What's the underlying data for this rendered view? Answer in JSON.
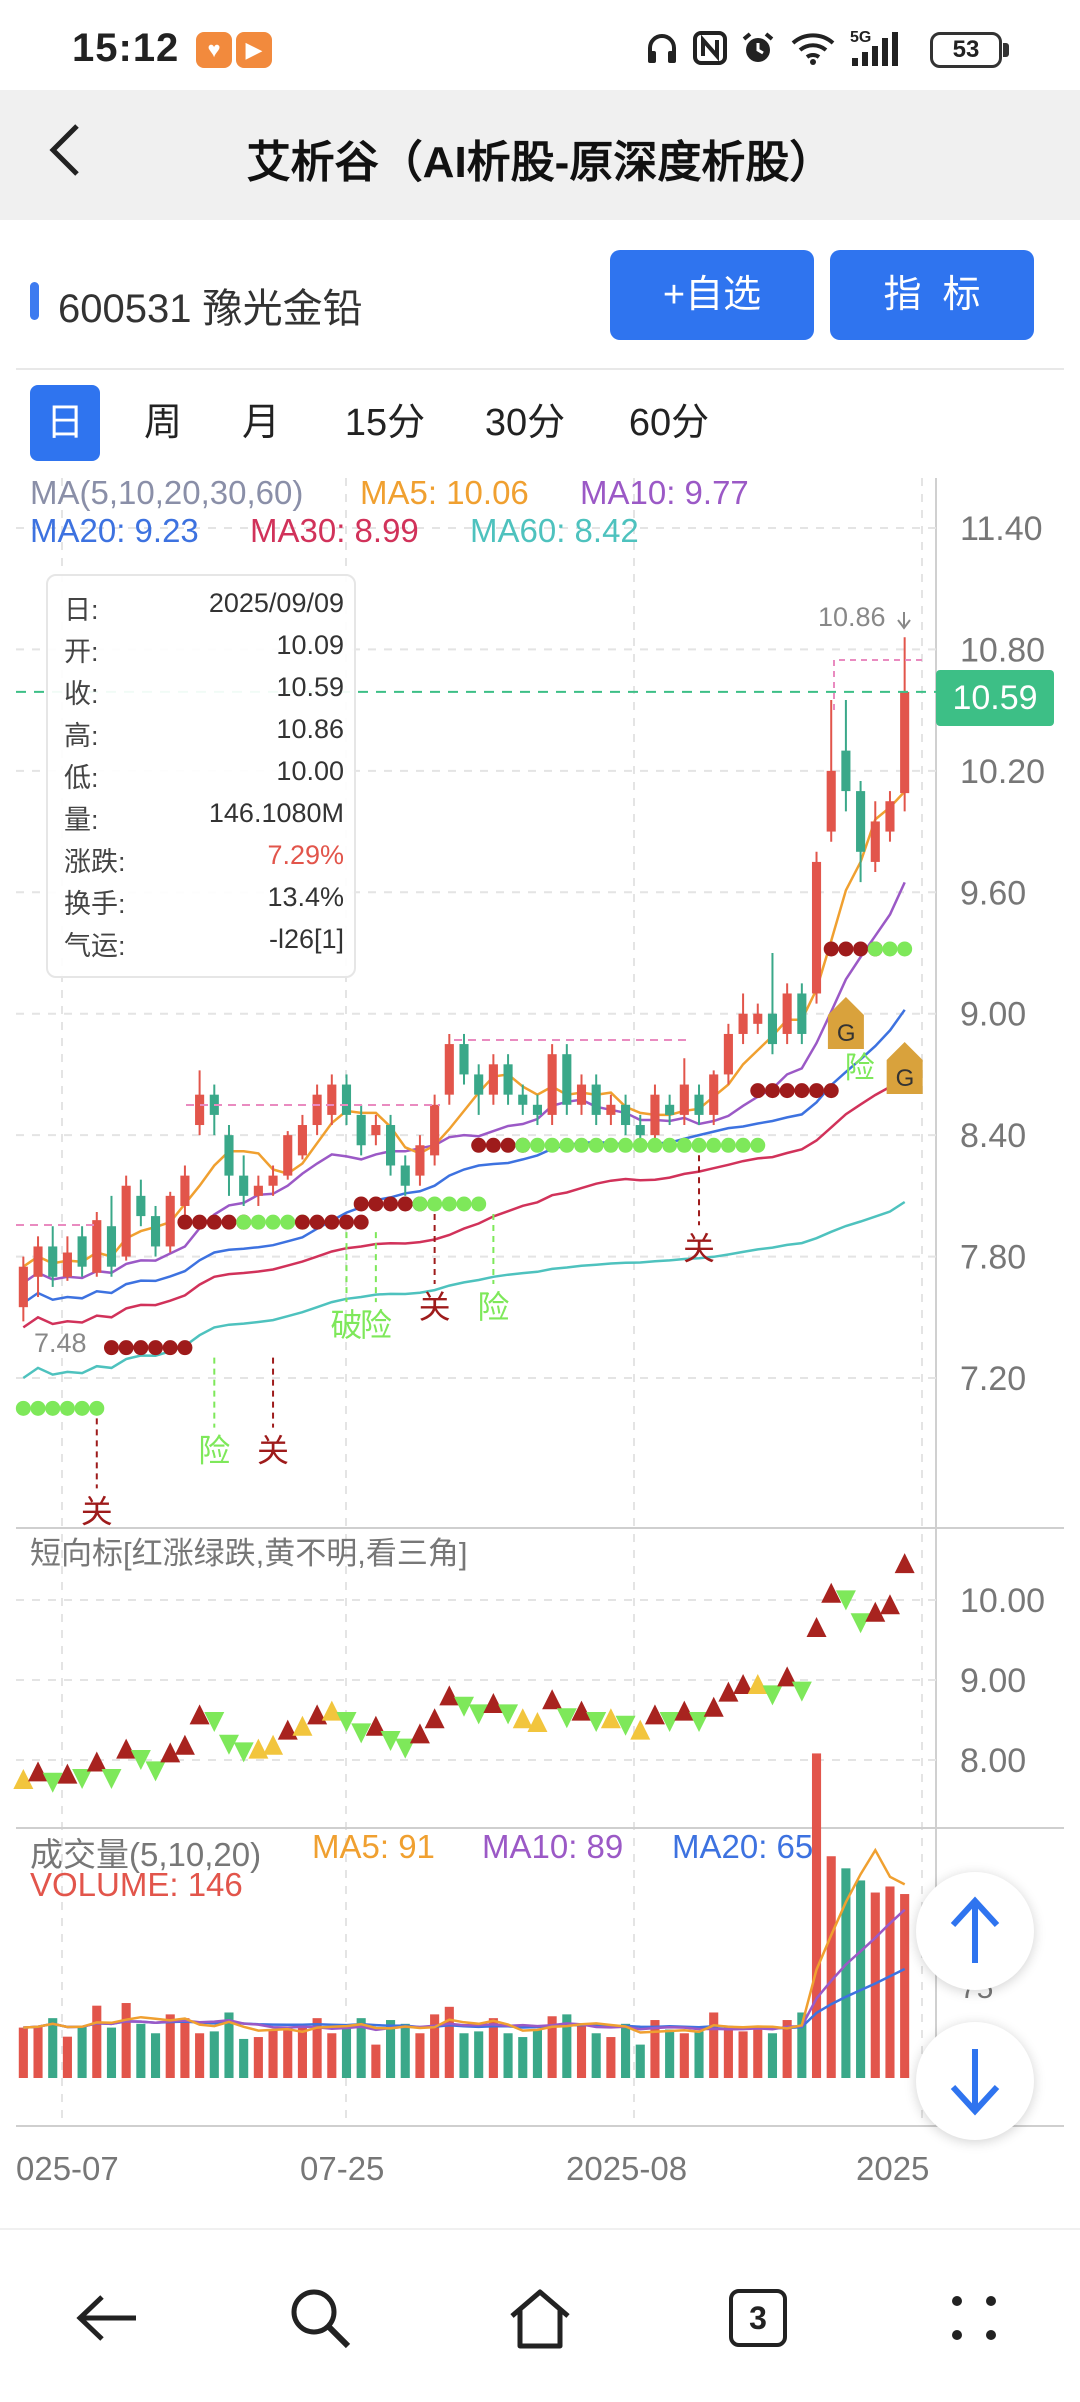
{
  "status_bar": {
    "time": "15:12",
    "battery": "53",
    "network": "5G",
    "icons": [
      "heart-app-icon",
      "play-app-icon",
      "headphones-icon",
      "nfc-icon",
      "alarm-icon",
      "wifi-icon",
      "signal-icon",
      "battery-icon"
    ]
  },
  "header": {
    "title": "艾析谷（AI析股-原深度析股）"
  },
  "stock": {
    "name": "600531 豫光金铅",
    "add_watchlist": "+自选",
    "indicators": "指  标"
  },
  "period_tabs": [
    "日",
    "周",
    "月",
    "15分",
    "30分",
    "60分"
  ],
  "ma_legend": {
    "title": "MA(5,10,20,30,60)",
    "ma5": "MA5: 10.06",
    "ma10": "MA10: 9.77",
    "ma20": "MA20: 9.23",
    "ma30": "MA30: 8.99",
    "ma60": "MA60: 8.42"
  },
  "info_box": {
    "rows": [
      {
        "k": "日:",
        "v": "2025/09/09"
      },
      {
        "k": "开:",
        "v": "10.09"
      },
      {
        "k": "收:",
        "v": "10.59"
      },
      {
        "k": "高:",
        "v": "10.86"
      },
      {
        "k": "低:",
        "v": "10.00"
      },
      {
        "k": "量:",
        "v": "146.1080M"
      },
      {
        "k": "涨跌:",
        "v": "7.29%"
      },
      {
        "k": "换手:",
        "v": "13.4%"
      },
      {
        "k": "气运:",
        "v": "-l26[1]"
      }
    ]
  },
  "price_tag": "10.59",
  "high_label": "10.86",
  "low_label": "7.48",
  "price_axis": [
    "11.40",
    "10.80",
    "10.20",
    "9.60",
    "9.00",
    "8.40",
    "7.80",
    "7.20"
  ],
  "short_indicator": {
    "title": "短向标[红涨绿跌,黄不明,看三角]",
    "axis": [
      "10.00",
      "9.00",
      "8.00"
    ]
  },
  "volume": {
    "title": "成交量(5,10,20)",
    "ma5": "MA5: 91",
    "ma10": "MA10: 89",
    "ma20": "MA20: 65",
    "volume_label": "VOLUME: 146",
    "axis_partial": "75"
  },
  "date_axis": [
    "025-07",
    "07-25",
    "2025-08",
    "2025"
  ],
  "signals": {
    "guan": "关",
    "xian": "险",
    "po": "破",
    "g": "G"
  },
  "colors": {
    "up": "#e2554b",
    "down": "#3aa889",
    "ma5": "#f0a030",
    "ma10": "#9b59c6",
    "ma20": "#3d72e0",
    "ma30": "#d1325a",
    "ma60": "#4ec2be",
    "accent": "#2f74ef"
  },
  "chart_data": {
    "type": "candlestick",
    "period": "daily",
    "ylim": [
      6.9,
      11.6
    ],
    "candles": [
      {
        "o": 7.55,
        "c": 7.75,
        "h": 7.8,
        "l": 7.48
      },
      {
        "o": 7.7,
        "c": 7.85,
        "h": 7.9,
        "l": 7.6
      },
      {
        "o": 7.85,
        "c": 7.7,
        "h": 7.95,
        "l": 7.65
      },
      {
        "o": 7.7,
        "c": 7.82,
        "h": 7.9,
        "l": 7.68
      },
      {
        "o": 7.9,
        "c": 7.75,
        "h": 7.95,
        "l": 7.7
      },
      {
        "o": 7.72,
        "c": 7.98,
        "h": 8.02,
        "l": 7.7
      },
      {
        "o": 7.95,
        "c": 7.75,
        "h": 8.1,
        "l": 7.7
      },
      {
        "o": 7.8,
        "c": 8.15,
        "h": 8.2,
        "l": 7.78
      },
      {
        "o": 8.1,
        "c": 8.0,
        "h": 8.18,
        "l": 7.95
      },
      {
        "o": 8.0,
        "c": 7.85,
        "h": 8.05,
        "l": 7.8
      },
      {
        "o": 7.85,
        "c": 8.1,
        "h": 8.12,
        "l": 7.82
      },
      {
        "o": 8.05,
        "c": 8.2,
        "h": 8.25,
        "l": 8.0
      },
      {
        "o": 8.45,
        "c": 8.6,
        "h": 8.72,
        "l": 8.4
      },
      {
        "o": 8.6,
        "c": 8.5,
        "h": 8.65,
        "l": 8.4
      },
      {
        "o": 8.4,
        "c": 8.2,
        "h": 8.45,
        "l": 8.1
      },
      {
        "o": 8.2,
        "c": 8.1,
        "h": 8.3,
        "l": 8.05
      },
      {
        "o": 8.1,
        "c": 8.15,
        "h": 8.2,
        "l": 8.05
      },
      {
        "o": 8.15,
        "c": 8.2,
        "h": 8.25,
        "l": 8.1
      },
      {
        "o": 8.2,
        "c": 8.4,
        "h": 8.42,
        "l": 8.18
      },
      {
        "o": 8.3,
        "c": 8.45,
        "h": 8.5,
        "l": 8.28
      },
      {
        "o": 8.45,
        "c": 8.6,
        "h": 8.65,
        "l": 8.4
      },
      {
        "o": 8.5,
        "c": 8.65,
        "h": 8.7,
        "l": 8.45
      },
      {
        "o": 8.65,
        "c": 8.5,
        "h": 8.7,
        "l": 8.45
      },
      {
        "o": 8.5,
        "c": 8.35,
        "h": 8.55,
        "l": 8.3
      },
      {
        "o": 8.4,
        "c": 8.45,
        "h": 8.5,
        "l": 8.35
      },
      {
        "o": 8.45,
        "c": 8.25,
        "h": 8.5,
        "l": 8.2
      },
      {
        "o": 8.25,
        "c": 8.15,
        "h": 8.3,
        "l": 8.1
      },
      {
        "o": 8.2,
        "c": 8.35,
        "h": 8.4,
        "l": 8.15
      },
      {
        "o": 8.3,
        "c": 8.55,
        "h": 8.6,
        "l": 8.25
      },
      {
        "o": 8.6,
        "c": 8.85,
        "h": 8.9,
        "l": 8.55
      },
      {
        "o": 8.85,
        "c": 8.7,
        "h": 8.9,
        "l": 8.65
      },
      {
        "o": 8.7,
        "c": 8.6,
        "h": 8.75,
        "l": 8.5
      },
      {
        "o": 8.6,
        "c": 8.75,
        "h": 8.8,
        "l": 8.55
      },
      {
        "o": 8.75,
        "c": 8.6,
        "h": 8.8,
        "l": 8.55
      },
      {
        "o": 8.6,
        "c": 8.55,
        "h": 8.65,
        "l": 8.5
      },
      {
        "o": 8.55,
        "c": 8.5,
        "h": 8.6,
        "l": 8.45
      },
      {
        "o": 8.5,
        "c": 8.8,
        "h": 8.85,
        "l": 8.45
      },
      {
        "o": 8.8,
        "c": 8.55,
        "h": 8.85,
        "l": 8.5
      },
      {
        "o": 8.55,
        "c": 8.65,
        "h": 8.7,
        "l": 8.5
      },
      {
        "o": 8.65,
        "c": 8.5,
        "h": 8.7,
        "l": 8.45
      },
      {
        "o": 8.5,
        "c": 8.55,
        "h": 8.6,
        "l": 8.45
      },
      {
        "o": 8.55,
        "c": 8.45,
        "h": 8.6,
        "l": 8.4
      },
      {
        "o": 8.45,
        "c": 8.4,
        "h": 8.5,
        "l": 8.35
      },
      {
        "o": 8.4,
        "c": 8.6,
        "h": 8.65,
        "l": 8.35
      },
      {
        "o": 8.55,
        "c": 8.5,
        "h": 8.6,
        "l": 8.45
      },
      {
        "o": 8.5,
        "c": 8.65,
        "h": 8.78,
        "l": 8.45
      },
      {
        "o": 8.6,
        "c": 8.5,
        "h": 8.65,
        "l": 8.45
      },
      {
        "o": 8.5,
        "c": 8.7,
        "h": 8.72,
        "l": 8.45
      },
      {
        "o": 8.7,
        "c": 8.9,
        "h": 8.95,
        "l": 8.65
      },
      {
        "o": 8.9,
        "c": 9.0,
        "h": 9.1,
        "l": 8.85
      },
      {
        "o": 8.95,
        "c": 9.0,
        "h": 9.05,
        "l": 8.9
      },
      {
        "o": 9.0,
        "c": 8.85,
        "h": 9.3,
        "l": 8.8
      },
      {
        "o": 8.9,
        "c": 9.1,
        "h": 9.15,
        "l": 8.85
      },
      {
        "o": 9.1,
        "c": 8.9,
        "h": 9.15,
        "l": 8.85
      },
      {
        "o": 9.1,
        "c": 9.75,
        "h": 9.8,
        "l": 9.05
      },
      {
        "o": 9.9,
        "c": 10.2,
        "h": 10.55,
        "l": 9.85
      },
      {
        "o": 10.3,
        "c": 10.1,
        "h": 10.55,
        "l": 10.0
      },
      {
        "o": 10.1,
        "c": 9.8,
        "h": 10.15,
        "l": 9.65
      },
      {
        "o": 9.75,
        "c": 9.95,
        "h": 10.05,
        "l": 9.7
      },
      {
        "o": 9.9,
        "c": 10.05,
        "h": 10.1,
        "l": 9.85
      },
      {
        "o": 10.09,
        "c": 10.59,
        "h": 10.86,
        "l": 10.0
      }
    ]
  }
}
